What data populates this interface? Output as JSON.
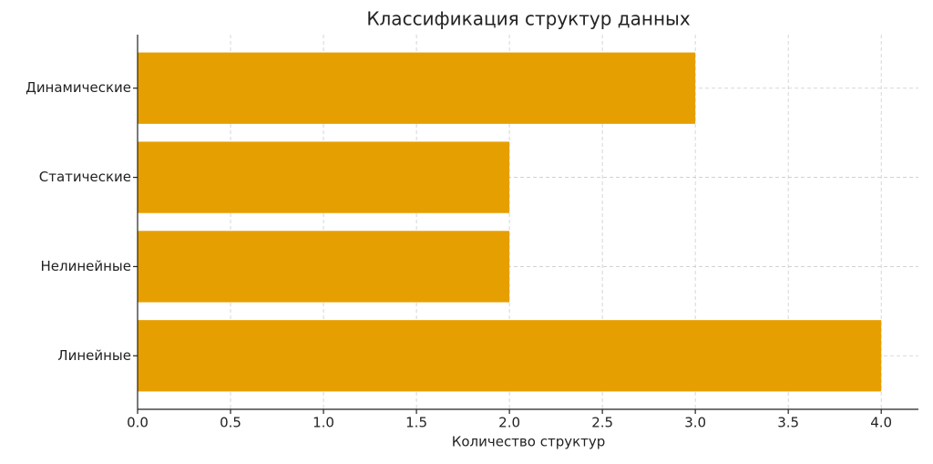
{
  "chart_data": {
    "type": "barh",
    "title": "Классификация структур данных",
    "xlabel": "Количество структур",
    "categories": [
      "Линейные",
      "Нелинейные",
      "Статические",
      "Динамические"
    ],
    "values": [
      4,
      2,
      2,
      3
    ],
    "color": "#e69f00",
    "xlim": [
      0,
      4.2
    ],
    "xticks": [
      {
        "value": 0,
        "label": "0.0"
      },
      0.5,
      {
        "value": 1,
        "label": "1.0"
      },
      1.5,
      {
        "value": 2,
        "label": "2.0"
      },
      2.5,
      {
        "value": 3,
        "label": "3.0"
      },
      3.5,
      {
        "value": 4,
        "label": "4.0"
      }
    ],
    "grid": true
  }
}
